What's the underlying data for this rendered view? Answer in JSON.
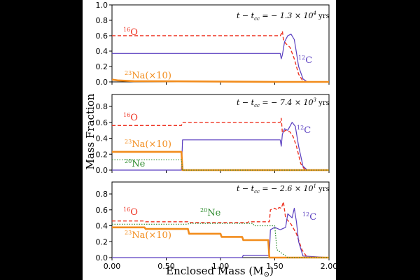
{
  "figure": {
    "ylabel": "Mass Fraction",
    "xlabel": "Enclosed Mass (M",
    "xlabel_sub": "⊙",
    "xlabel_close": ")"
  },
  "colors": {
    "O16": "#ee3322",
    "C12": "#5a3fc0",
    "Na23": "#f28c1c",
    "Ne20": "#2e8b2e"
  },
  "chart_data": [
    {
      "type": "line",
      "annotation": "t − t",
      "annotation_sub": "cc",
      "annotation_rest": " = − 1.3 × 10",
      "annotation_exp": "4",
      "annotation_unit": " yrs",
      "xlim": [
        0,
        2.0
      ],
      "ylim": [
        0,
        1.0
      ],
      "yticks": [
        "0.0",
        "0.2",
        "0.4",
        "0.6",
        "0.8",
        "1.0"
      ],
      "yticks_values": [
        0,
        0.2,
        0.4,
        0.6,
        0.8,
        1.0
      ],
      "xtick_labels": [],
      "series": [
        {
          "name": "16O",
          "label_sup": "16",
          "label_main": "O",
          "color_key": "O16",
          "style": "dashed",
          "x": [
            0,
            1.55,
            1.56,
            1.57,
            1.58,
            1.6,
            1.64,
            1.68,
            1.72,
            1.76,
            1.8,
            2.0
          ],
          "y": [
            0.6,
            0.6,
            0.62,
            0.66,
            0.55,
            0.5,
            0.45,
            0.3,
            0.1,
            0.01,
            0,
            0
          ]
        },
        {
          "name": "12C",
          "label_sup": "12",
          "label_main": "C",
          "color_key": "C12",
          "style": "solid",
          "x": [
            0,
            1.55,
            1.56,
            1.57,
            1.59,
            1.62,
            1.65,
            1.68,
            1.7,
            1.72,
            1.76,
            1.8,
            2.0
          ],
          "y": [
            0.37,
            0.37,
            0.3,
            0.35,
            0.52,
            0.6,
            0.62,
            0.55,
            0.38,
            0.2,
            0.04,
            0,
            0
          ]
        },
        {
          "name": "23Na(×10)",
          "label_sup": "23",
          "label_main": "Na(×10)",
          "color_key": "Na23",
          "style": "thick",
          "x": [
            0,
            0.05,
            0.2,
            1.55,
            2.0
          ],
          "y": [
            0.03,
            0.02,
            0.01,
            0.0,
            0.0
          ]
        }
      ]
    },
    {
      "type": "line",
      "annotation": "t − t",
      "annotation_sub": "cc",
      "annotation_rest": " = − 7.4 × 10",
      "annotation_exp": "3",
      "annotation_unit": " yrs",
      "xlim": [
        0,
        2.0
      ],
      "ylim": [
        0,
        0.95
      ],
      "yticks": [
        "0.0",
        "0.2",
        "0.4",
        "0.6",
        "0.8"
      ],
      "yticks_values": [
        0,
        0.2,
        0.4,
        0.6,
        0.8
      ],
      "xtick_labels": [],
      "series": [
        {
          "name": "16O",
          "label_sup": "16",
          "label_main": "O",
          "color_key": "O16",
          "style": "dashed",
          "x": [
            0,
            0.64,
            0.65,
            1.55,
            1.56,
            1.57,
            1.6,
            1.64,
            1.67,
            1.7,
            1.74,
            1.78,
            2.0
          ],
          "y": [
            0.56,
            0.56,
            0.6,
            0.6,
            0.65,
            0.47,
            0.5,
            0.48,
            0.42,
            0.3,
            0.08,
            0,
            0
          ]
        },
        {
          "name": "12C",
          "label_sup": "12",
          "label_main": "C",
          "color_key": "C12",
          "style": "solid",
          "x": [
            0,
            0.64,
            0.65,
            1.55,
            1.56,
            1.57,
            1.59,
            1.62,
            1.66,
            1.69,
            1.72,
            1.76,
            1.8,
            2.0
          ],
          "y": [
            0,
            0,
            0.38,
            0.38,
            0.3,
            0.45,
            0.52,
            0.5,
            0.6,
            0.55,
            0.3,
            0.05,
            0,
            0
          ]
        },
        {
          "name": "23Na(×10)",
          "label_sup": "23",
          "label_main": "Na(×10)",
          "color_key": "Na23",
          "style": "thick",
          "x": [
            0,
            0.64,
            0.65,
            2.0
          ],
          "y": [
            0.23,
            0.23,
            0.0,
            0.0
          ]
        },
        {
          "name": "20Ne",
          "label_sup": "20",
          "label_main": "Ne",
          "color_key": "Ne20",
          "style": "dotted",
          "x": [
            0,
            0.64,
            0.65,
            2.0
          ],
          "y": [
            0.13,
            0.13,
            0.0,
            0.0
          ]
        }
      ]
    },
    {
      "type": "line",
      "annotation": "t − t",
      "annotation_sub": "cc",
      "annotation_rest": " = − 2.6 × 10",
      "annotation_exp": "1",
      "annotation_unit": " yrs",
      "xlim": [
        0,
        2.0
      ],
      "ylim": [
        0,
        0.95
      ],
      "yticks": [
        "0.0",
        "0.2",
        "0.4",
        "0.6",
        "0.8"
      ],
      "yticks_values": [
        0,
        0.2,
        0.4,
        0.6,
        0.8
      ],
      "xtick_labels": [
        "0.00",
        "0.50",
        "1.00",
        "1.50",
        "2.00"
      ],
      "xtick_values": [
        0,
        0.5,
        1.0,
        1.5,
        2.0
      ],
      "series": [
        {
          "name": "16O",
          "label_sup": "16",
          "label_main": "O",
          "color_key": "O16",
          "style": "dashed",
          "x": [
            0,
            0.3,
            0.31,
            0.7,
            0.71,
            1.25,
            1.26,
            1.45,
            1.46,
            1.5,
            1.52,
            1.54,
            1.56,
            1.58,
            1.6,
            1.65,
            1.7,
            1.75,
            1.8,
            2.0
          ],
          "y": [
            0.46,
            0.46,
            0.45,
            0.45,
            0.44,
            0.44,
            0.45,
            0.45,
            0.6,
            0.62,
            0.6,
            0.63,
            0.62,
            0.7,
            0.5,
            0.42,
            0.3,
            0.1,
            0,
            0
          ]
        },
        {
          "name": "12C",
          "label_sup": "12",
          "label_main": "C",
          "color_key": "C12",
          "style": "solid",
          "x": [
            0,
            1.2,
            1.21,
            1.45,
            1.46,
            1.5,
            1.55,
            1.6,
            1.62,
            1.66,
            1.68,
            1.7,
            1.72,
            1.76,
            2.0
          ],
          "y": [
            0,
            0,
            0.03,
            0.03,
            0.35,
            0.38,
            0.35,
            0.38,
            0.55,
            0.5,
            0.62,
            0.45,
            0.2,
            0.02,
            0
          ]
        },
        {
          "name": "23Na(×10)",
          "label_sup": "23",
          "label_main": "Na(×10)",
          "color_key": "Na23",
          "style": "thick",
          "x": [
            0,
            0.3,
            0.31,
            0.7,
            0.71,
            1.0,
            1.01,
            1.2,
            1.21,
            1.44,
            1.45,
            2.0
          ],
          "y": [
            0.38,
            0.38,
            0.36,
            0.36,
            0.3,
            0.3,
            0.26,
            0.26,
            0.22,
            0.22,
            0.0,
            0.0
          ]
        },
        {
          "name": "20Ne",
          "label_sup": "20",
          "label_main": "Ne",
          "color_key": "Ne20",
          "style": "dotted",
          "x": [
            0,
            0.7,
            0.71,
            1.3,
            1.31,
            1.5,
            1.52,
            1.6,
            1.62,
            2.0
          ],
          "y": [
            0.42,
            0.42,
            0.43,
            0.43,
            0.4,
            0.4,
            0.1,
            0.02,
            0.0,
            0.0
          ]
        }
      ]
    }
  ]
}
